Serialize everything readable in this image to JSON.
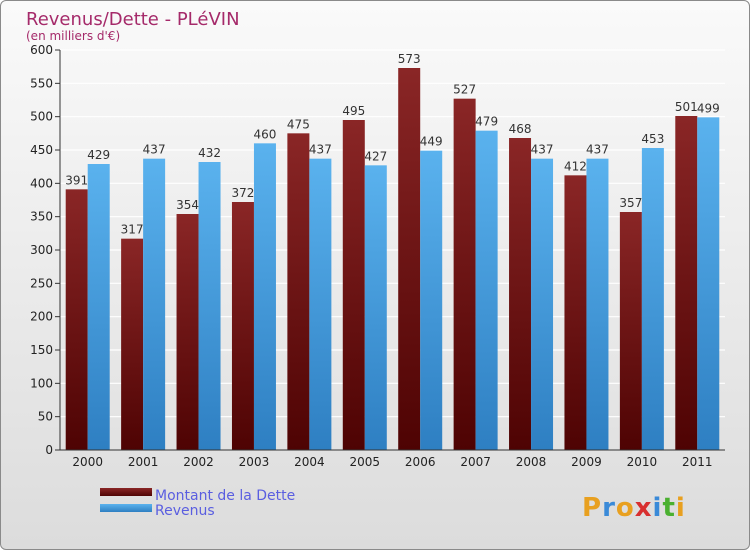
{
  "chart_data": {
    "type": "bar",
    "title": "Revenus/Dette - PLéVIN",
    "subtitle": "(en milliers d'€)",
    "categories": [
      "2000",
      "2001",
      "2002",
      "2003",
      "2004",
      "2005",
      "2006",
      "2007",
      "2008",
      "2009",
      "2010",
      "2011"
    ],
    "series": [
      {
        "name": "Montant de la Dette",
        "color": "#7a1414",
        "values": [
          391,
          317,
          354,
          372,
          475,
          495,
          573,
          527,
          468,
          412,
          357,
          501
        ]
      },
      {
        "name": "Revenus",
        "color": "#4aa8e8",
        "values": [
          429,
          437,
          432,
          460,
          437,
          427,
          449,
          479,
          437,
          437,
          453,
          499
        ]
      }
    ],
    "ylim": [
      0,
      600
    ],
    "yticks": [
      0,
      50,
      100,
      150,
      200,
      250,
      300,
      350,
      400,
      450,
      500,
      550,
      600
    ],
    "grid": true,
    "legend": "bottom-left"
  },
  "branding": {
    "logo_letters": [
      "P",
      "r",
      "o",
      "x",
      "i",
      "t",
      "i"
    ],
    "logo_colors": [
      "#e8a020",
      "#3a8ad8",
      "#e8a020",
      "#d83030",
      "#3a8ad8",
      "#4ab030",
      "#e8a020"
    ]
  }
}
